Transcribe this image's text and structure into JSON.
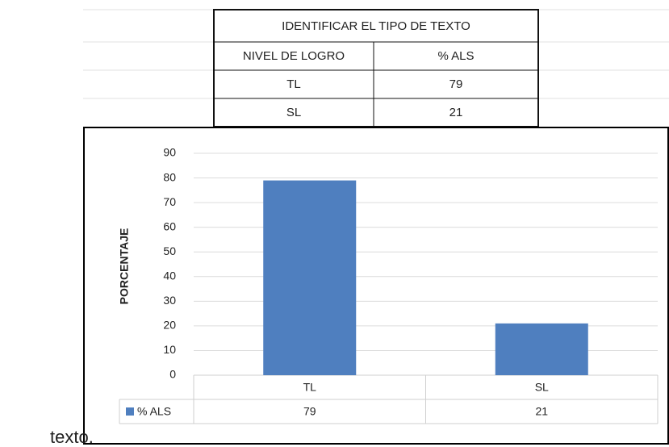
{
  "caption": "texto.",
  "table": {
    "title": "IDENTIFICAR EL TIPO DE TEXTO",
    "header": [
      "NIVEL DE LOGRO",
      "% ALS"
    ],
    "rows": [
      [
        "TL",
        79
      ],
      [
        "SL",
        21
      ]
    ]
  },
  "chart_data": {
    "type": "bar",
    "y_axis_label": "PORCENTAJE",
    "categories": [
      "TL",
      "SL"
    ],
    "series": [
      {
        "name": "% ALS",
        "color": "#4f7fbf",
        "values": [
          79,
          21
        ]
      }
    ],
    "ylim": [
      0,
      90
    ],
    "yticks": [
      0,
      10,
      20,
      30,
      40,
      50,
      60,
      70,
      80,
      90
    ],
    "grid": true
  }
}
